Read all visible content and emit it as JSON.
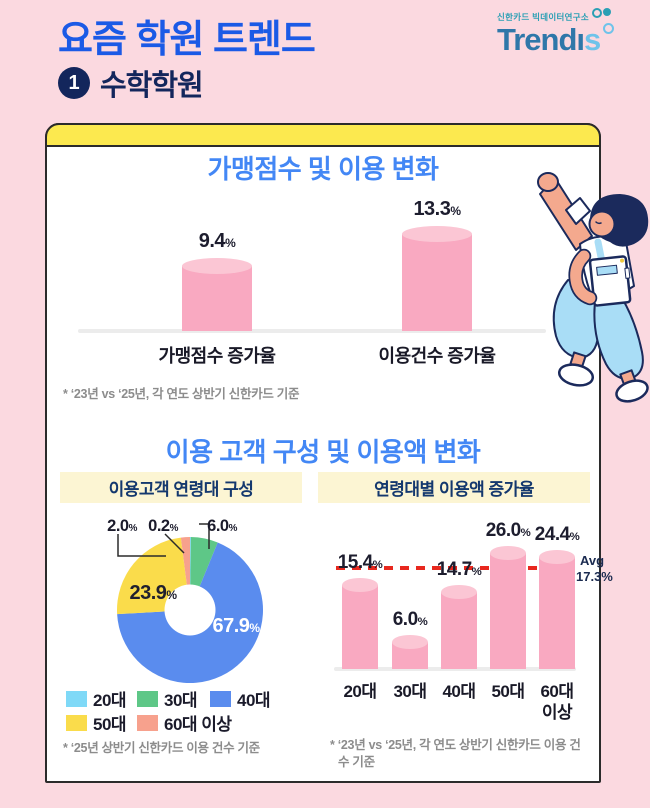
{
  "header": {
    "title": "요즘 학원 트렌드",
    "badge_number": "1",
    "subtitle": "수학학원",
    "logo": {
      "org": "신한카드 빅데이터연구소",
      "brand_prefix": "Trend",
      "brand_i": "ı",
      "brand_suffix": "s"
    }
  },
  "section2_title": "이용 고객 구성 및 이용액 변화",
  "chart_data": [
    {
      "type": "bar",
      "title": "가맹점수 및 이용 변화",
      "categories": [
        "가맹점수 증가율",
        "이용건수 증가율"
      ],
      "values": [
        9.4,
        13.3
      ],
      "unit": "%",
      "bar_color": "#F9A9C1",
      "footnote": "* ‘23년 vs ‘25년, 각 연도 상반기 신한카드 기준"
    },
    {
      "type": "pie",
      "title": "이용고객 연령대 구성",
      "labels": [
        "20대",
        "30대",
        "40대",
        "50대",
        "60대 이상"
      ],
      "values": [
        0.2,
        6.0,
        67.9,
        23.9,
        2.0
      ],
      "colors": [
        "#7FD9F7",
        "#5EC787",
        "#5A8CEE",
        "#FADC4B",
        "#F7A18D"
      ],
      "donut": true,
      "legend_position": "bottom",
      "footnote": "* ‘25년 상반기 신한카드 이용 건수 기준"
    },
    {
      "type": "bar",
      "title": "연령대별 이용액 증가율",
      "categories": [
        "20대",
        "30대",
        "40대",
        "50대",
        "60대 이상"
      ],
      "values": [
        15.4,
        6.0,
        14.7,
        26.0,
        24.4
      ],
      "unit": "%",
      "bar_color": "#F9A9C1",
      "avg": {
        "label": "Avg",
        "value": 17.3
      },
      "footnote": "* ‘23년 vs ‘25년, 각 연도 상반기 신한카드 이용 건수 기준"
    }
  ]
}
